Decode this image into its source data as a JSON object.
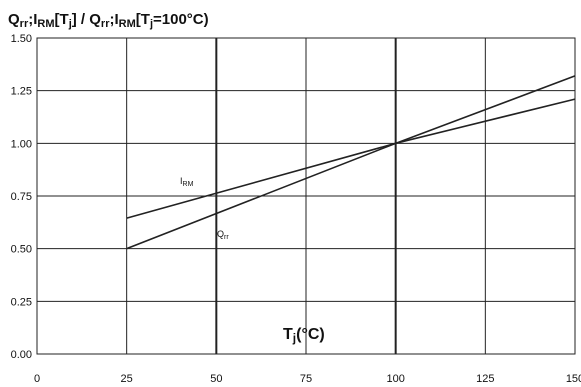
{
  "chart_data": {
    "type": "line",
    "title_parts": [
      "Q",
      "rr",
      ";I",
      "RM",
      "[T",
      "j",
      "] / Q",
      "rr",
      ";I",
      "RM",
      "[T",
      "j",
      "=100°C)"
    ],
    "x_label_parts": [
      "T",
      "j",
      "(°C)"
    ],
    "x": [
      25,
      100,
      150
    ],
    "series": [
      {
        "name_parts": [
          "I",
          "RM"
        ],
        "color": "#222222",
        "values": [
          0.645,
          1.0,
          1.21
        ]
      },
      {
        "name_parts": [
          "Q",
          "rr"
        ],
        "color": "#222222",
        "values": [
          0.5,
          1.0,
          1.32
        ]
      }
    ],
    "xlim": [
      0,
      150
    ],
    "xticks": [
      0,
      25,
      50,
      75,
      100,
      125,
      150
    ],
    "ylim": [
      0,
      1.5
    ],
    "yticks": [
      {
        "value": 0,
        "label": "0.00"
      },
      {
        "value": 0.25,
        "label": "0.25"
      },
      {
        "value": 0.5,
        "label": "0.50"
      },
      {
        "value": 0.75,
        "label": "0.75"
      },
      {
        "value": 1.0,
        "label": "1.00"
      },
      {
        "value": 1.25,
        "label": "1.25"
      },
      {
        "value": 1.5,
        "label": "1.50"
      }
    ],
    "grid": true
  }
}
